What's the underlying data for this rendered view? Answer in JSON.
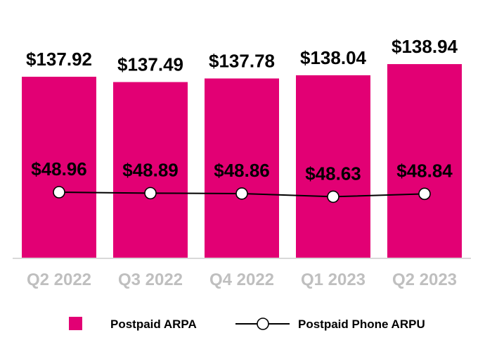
{
  "chart_data": {
    "type": "bar",
    "categories": [
      "Q2 2022",
      "Q3 2022",
      "Q4 2022",
      "Q1 2023",
      "Q2 2023"
    ],
    "series": [
      {
        "name": "Postpaid ARPA",
        "type": "bar",
        "values": [
          137.92,
          137.49,
          137.78,
          138.04,
          138.94
        ],
        "labels": [
          "$137.92",
          "$137.49",
          "$137.78",
          "$138.04",
          "$138.94"
        ],
        "color": "#e20074"
      },
      {
        "name": "Postpaid Phone ARPU",
        "type": "line",
        "values": [
          48.96,
          48.89,
          48.86,
          48.63,
          48.84
        ],
        "labels": [
          "$48.96",
          "$48.89",
          "$48.86",
          "$48.63",
          "$48.84"
        ],
        "color": "#000000",
        "marker": "circle-hollow"
      }
    ],
    "legend_position": "bottom",
    "grid": false,
    "value_axis_shown": false
  }
}
